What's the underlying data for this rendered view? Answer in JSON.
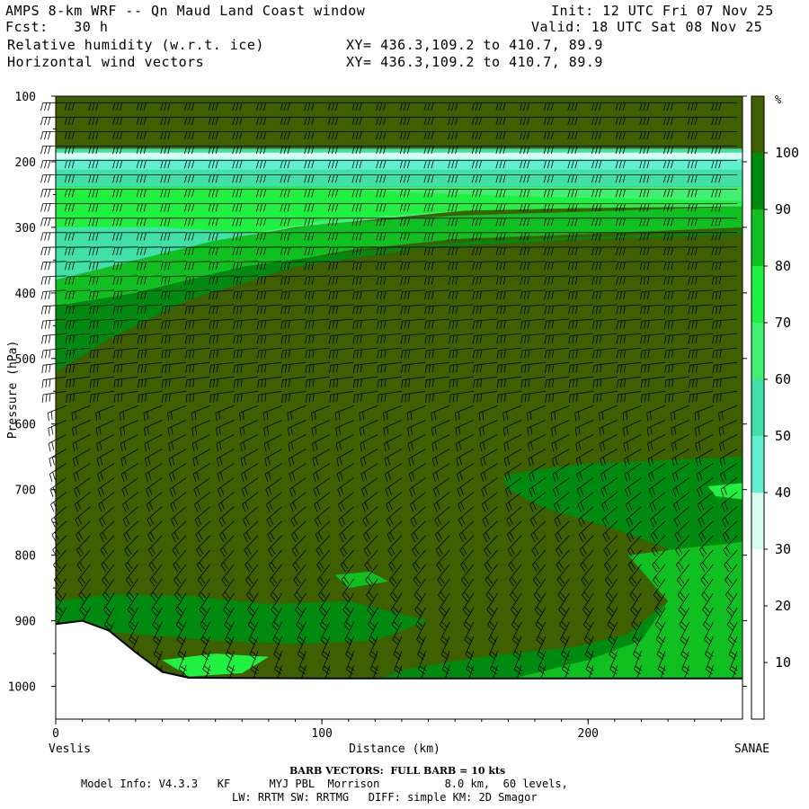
{
  "header": {
    "title": "AMPS 8-km WRF -- Qn Maud Land Coast window",
    "init": "Init: 12 UTC Fri 07 Nov 25",
    "fcst": "Fcst:   30 h",
    "valid": "Valid: 18 UTC Sat 08 Nov 25",
    "field1": "Relative humidity (w.r.t. ice)",
    "xy1": "XY= 436.3,109.2 to 410.7, 89.9",
    "field2": "Horizontal wind vectors",
    "xy2": "XY= 436.3,109.2 to 410.7, 89.9"
  },
  "chart_data": {
    "type": "heatmap",
    "title": "Relative humidity (w.r.t. ice) cross section with horizontal wind vectors",
    "xlabel": "Distance (km)",
    "ylabel": "Pressure (hPa)",
    "xlim": [
      0,
      258
    ],
    "ylim": [
      1050,
      100
    ],
    "x_ticks": [
      0,
      100,
      200
    ],
    "y_ticks": [
      100,
      200,
      300,
      400,
      500,
      600,
      700,
      800,
      900,
      1000
    ],
    "left_endpoint": "Veslis",
    "right_endpoint": "SANAE",
    "colorbar": {
      "unit": "%",
      "levels": [
        10,
        20,
        30,
        40,
        50,
        60,
        70,
        80,
        90,
        100
      ],
      "bins": [
        {
          "from": 0,
          "to": 10,
          "color": "#ffffff"
        },
        {
          "from": 10,
          "to": 20,
          "color": "#ffffff"
        },
        {
          "from": 20,
          "to": 30,
          "color": "#ffffff"
        },
        {
          "from": 30,
          "to": 40,
          "color": "#d8fcf0"
        },
        {
          "from": 40,
          "to": 50,
          "color": "#60f0d0"
        },
        {
          "from": 50,
          "to": 60,
          "color": "#40e0a8"
        },
        {
          "from": 60,
          "to": 70,
          "color": "#40f070"
        },
        {
          "from": 70,
          "to": 80,
          "color": "#20f040"
        },
        {
          "from": 80,
          "to": 90,
          "color": "#10c020"
        },
        {
          "from": 90,
          "to": 100,
          "color": "#008a10"
        },
        {
          "from": 100,
          "to": 110,
          "color": "#3f6000"
        }
      ]
    },
    "terrain_surface_hPa": [
      {
        "x": 0,
        "p": 905
      },
      {
        "x": 10,
        "p": 900
      },
      {
        "x": 20,
        "p": 915
      },
      {
        "x": 30,
        "p": 948
      },
      {
        "x": 40,
        "p": 978
      },
      {
        "x": 50,
        "p": 987
      },
      {
        "x": 100,
        "p": 988
      },
      {
        "x": 258,
        "p": 988
      }
    ],
    "rh_regions": [
      {
        "desc": "upper layer",
        "p_range": [
          100,
          180
        ],
        "rh": 100
      },
      {
        "desc": "dry band",
        "p_range": [
          185,
          230
        ],
        "rh_range": [
          30,
          50
        ]
      },
      {
        "desc": "mid-level moist",
        "p_range": [
          300,
          950
        ],
        "rh": 100
      },
      {
        "desc": "lower right moist patch",
        "x_range": [
          165,
          258
        ],
        "p_range": [
          660,
          980
        ],
        "rh_range": [
          80,
          90
        ]
      }
    ],
    "wind_barbs": {
      "description": "Westerly winds aloft, weaker northwesterly/northerly near surface",
      "full_barb": "10 kts"
    }
  },
  "footer": {
    "barb_note": "BARB VECTORS:  FULL BARB = 10 kts",
    "model_info": "Model Info: V4.3.3   KF      MYJ PBL  Morrison          8.0 km,  60 levels,",
    "model_info2": "LW: RRTM SW: RRTMG   DIFF: simple KM: 2D Smagor"
  }
}
